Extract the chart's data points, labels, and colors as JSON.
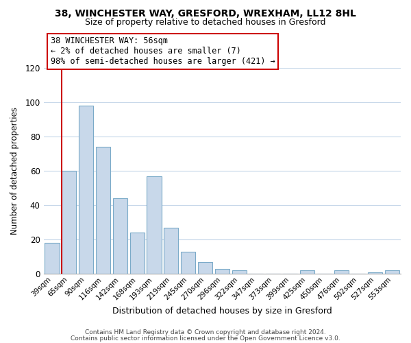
{
  "title_line1": "38, WINCHESTER WAY, GRESFORD, WREXHAM, LL12 8HL",
  "title_line2": "Size of property relative to detached houses in Gresford",
  "xlabel": "Distribution of detached houses by size in Gresford",
  "ylabel": "Number of detached properties",
  "bar_labels": [
    "39sqm",
    "65sqm",
    "90sqm",
    "116sqm",
    "142sqm",
    "168sqm",
    "193sqm",
    "219sqm",
    "245sqm",
    "270sqm",
    "296sqm",
    "322sqm",
    "347sqm",
    "373sqm",
    "399sqm",
    "425sqm",
    "450sqm",
    "476sqm",
    "502sqm",
    "527sqm",
    "553sqm"
  ],
  "bar_values": [
    18,
    60,
    98,
    74,
    44,
    24,
    57,
    27,
    13,
    7,
    3,
    2,
    0,
    0,
    0,
    2,
    0,
    2,
    0,
    1,
    2
  ],
  "bar_color": "#c8d8ea",
  "bar_edge_color": "#7aaac8",
  "vline_color": "#cc0000",
  "ylim": [
    0,
    120
  ],
  "yticks": [
    0,
    20,
    40,
    60,
    80,
    100,
    120
  ],
  "annotation_title": "38 WINCHESTER WAY: 56sqm",
  "annotation_line1": "← 2% of detached houses are smaller (7)",
  "annotation_line2": "98% of semi-detached houses are larger (421) →",
  "annotation_box_color": "#ffffff",
  "annotation_box_edge": "#cc0000",
  "footer_line1": "Contains HM Land Registry data © Crown copyright and database right 2024.",
  "footer_line2": "Contains public sector information licensed under the Open Government Licence v3.0.",
  "background_color": "#ffffff",
  "grid_color": "#c8d8ea"
}
